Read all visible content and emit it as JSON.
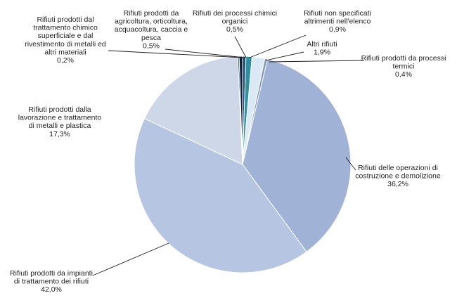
{
  "chart_data": {
    "type": "pie",
    "start_angle_deg": 0,
    "direction": "clockwise",
    "legend": "none",
    "slices": [
      {
        "label_lines": [
          "Rifiuti dei processi chimici",
          "organici",
          "0,5%"
        ],
        "category": "Rifiuti dei processi chimici organici",
        "value": 0.5,
        "value_label": "0,5%",
        "color": "#1f4e79"
      },
      {
        "label_lines": [
          "Rifiuti non specificati",
          "altrimenti nell'elenco",
          "0,9%"
        ],
        "category": "Rifiuti non specificati altrimenti nell'elenco",
        "value": 0.9,
        "value_label": "0,9%",
        "color": "#2e8fa3"
      },
      {
        "label_lines": [
          "Altri rifiuti",
          "1,9%"
        ],
        "category": "Altri rifiuti",
        "value": 1.9,
        "value_label": "1,9%",
        "color": "#dbe9f4"
      },
      {
        "label_lines": [
          "Rifiuti prodotti da processi",
          "termici",
          "0,4%"
        ],
        "category": "Rifiuti prodotti da processi termici",
        "value": 0.4,
        "value_label": "0,4%",
        "color": "#7f95bd"
      },
      {
        "label_lines": [
          "Rifiuti delle operazioni di",
          "costruzione e demolizione",
          "36,2%"
        ],
        "category": "Rifiuti delle operazioni di costruzione e demolizione",
        "value": 36.2,
        "value_label": "36,2%",
        "color": "#a0b3d6"
      },
      {
        "label_lines": [
          "Rifiuti prodotti da impianti",
          "di trattamento dei rifiuti",
          "42,0%"
        ],
        "category": "Rifiuti prodotti da impianti di trattamento dei rifiuti",
        "value": 42.0,
        "value_label": "42,0%",
        "color": "#b6c6e2"
      },
      {
        "label_lines": [
          "Rifiuti prodotti dalla",
          "lavorazione e trattamento",
          "di metalli e plastica",
          "17,3%"
        ],
        "category": "Rifiuti prodotti dalla lavorazione e trattamento di metalli e plastica",
        "value": 17.3,
        "value_label": "17,3%",
        "color": "#cdd7e8"
      },
      {
        "label_lines": [
          "Rifiuti prodotti dal",
          "trattamento chimico",
          "superficiale e dal",
          "rivestimento di metalli ed",
          "altri materiali",
          "0,2%"
        ],
        "category": "Rifiuti prodotti dal trattamento chimico superficiale e dal rivestimento di metalli ed altri materiali",
        "value": 0.2,
        "value_label": "0,2%",
        "color": "#17375e"
      },
      {
        "label_lines": [
          "Rifiuti prodotti da",
          "agricoltura, orticoltura,",
          "acquacoltura, caccia e",
          "pesca",
          "0,5%"
        ],
        "category": "Rifiuti prodotti da agricoltura, orticoltura, acquacoltura, caccia e pesca",
        "value": 0.5,
        "value_label": "0,5%",
        "color": "#0d1f3c"
      }
    ]
  }
}
